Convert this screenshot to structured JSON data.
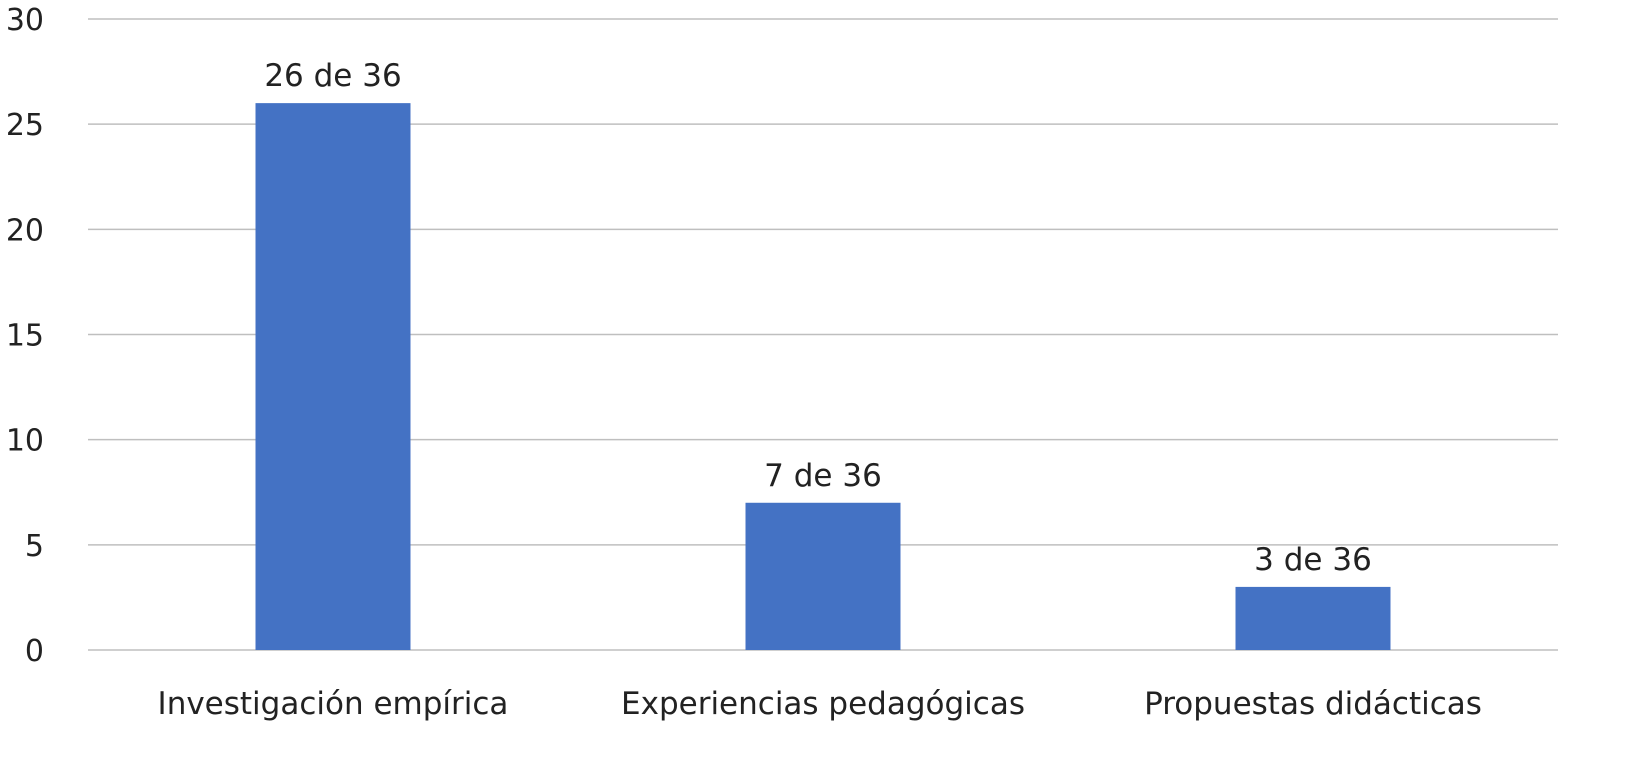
{
  "chart_data": {
    "type": "bar",
    "categories": [
      "Investigación empírica",
      "Experiencias pedagógicas",
      "Propuestas didácticas"
    ],
    "values": [
      26,
      7,
      3
    ],
    "data_labels": [
      "26 de 36",
      "7 de 36",
      "3 de 36"
    ],
    "title": "",
    "xlabel": "",
    "ylabel": "",
    "ylim": [
      0,
      30
    ],
    "yticks": [
      0,
      5,
      10,
      15,
      20,
      25,
      30
    ],
    "grid": true,
    "legend": "none",
    "bar_color": "#4472C4",
    "grid_color": "#BFBFBF"
  }
}
